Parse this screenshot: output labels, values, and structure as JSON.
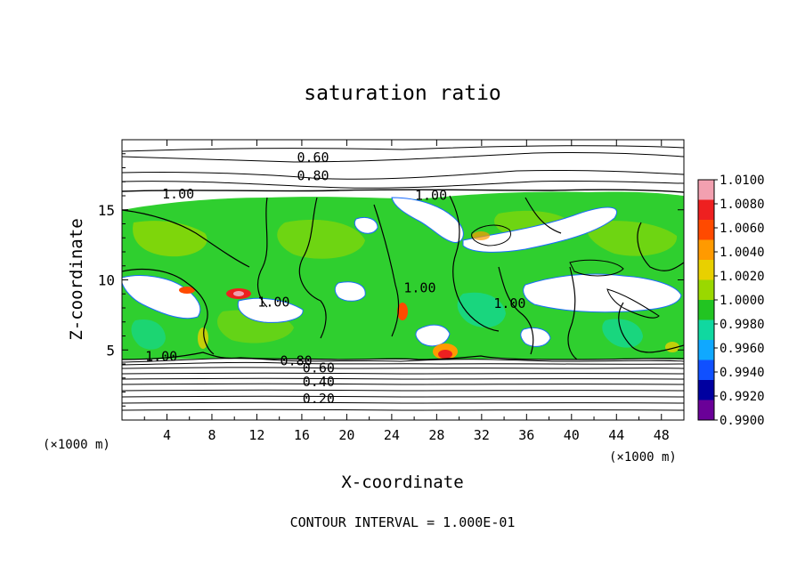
{
  "chart_data": {
    "type": "heatmap",
    "title": "saturation ratio",
    "xlabel": "X-coordinate",
    "ylabel": "Z-coordinate",
    "x_unit_left": "(×1000 m)",
    "x_unit_right": "(×1000 m)",
    "footer": "CONTOUR INTERVAL = 1.000E-01",
    "xlim": [
      0,
      50
    ],
    "ylim": [
      0,
      20
    ],
    "x_ticks": [
      4,
      8,
      12,
      16,
      20,
      24,
      28,
      32,
      36,
      40,
      44,
      48
    ],
    "y_ticks": [
      5,
      10,
      15
    ],
    "colorbar": {
      "min": 0.99,
      "max": 1.01,
      "tick_labels": [
        "1.0100",
        "1.0080",
        "1.0060",
        "1.0040",
        "1.0020",
        "1.0000",
        "0.9980",
        "0.9960",
        "0.9940",
        "0.9920",
        "0.9900"
      ],
      "tick_values": [
        1.01,
        1.008,
        1.006,
        1.004,
        1.002,
        1.0,
        0.998,
        0.996,
        0.994,
        0.992,
        0.99
      ],
      "colors": [
        "#f2a0b0",
        "#ee2020",
        "#ff4a00",
        "#ff9a00",
        "#e8d000",
        "#9ad800",
        "#22c422",
        "#10d8a0",
        "#10a8ff",
        "#1050ff",
        "#0000a0",
        "#6a0098"
      ]
    },
    "contour_interval": 0.1,
    "contour_labels": [
      {
        "text": "0.60",
        "x": 17.0,
        "y": 18.6
      },
      {
        "text": "0.80",
        "x": 17.0,
        "y": 17.3
      },
      {
        "text": "1.00",
        "x": 5.0,
        "y": 16.0
      },
      {
        "text": "1.00",
        "x": 27.5,
        "y": 15.9
      },
      {
        "text": "1.00",
        "x": 13.5,
        "y": 8.3
      },
      {
        "text": "1.00",
        "x": 26.5,
        "y": 9.3
      },
      {
        "text": "1.00",
        "x": 34.5,
        "y": 8.2
      },
      {
        "text": "1.00",
        "x": 3.5,
        "y": 4.4
      },
      {
        "text": "0.80",
        "x": 15.5,
        "y": 4.1
      },
      {
        "text": "0.60",
        "x": 17.5,
        "y": 3.6
      },
      {
        "text": "0.40",
        "x": 17.5,
        "y": 2.6
      },
      {
        "text": "0.20",
        "x": 17.5,
        "y": 1.4
      }
    ]
  }
}
